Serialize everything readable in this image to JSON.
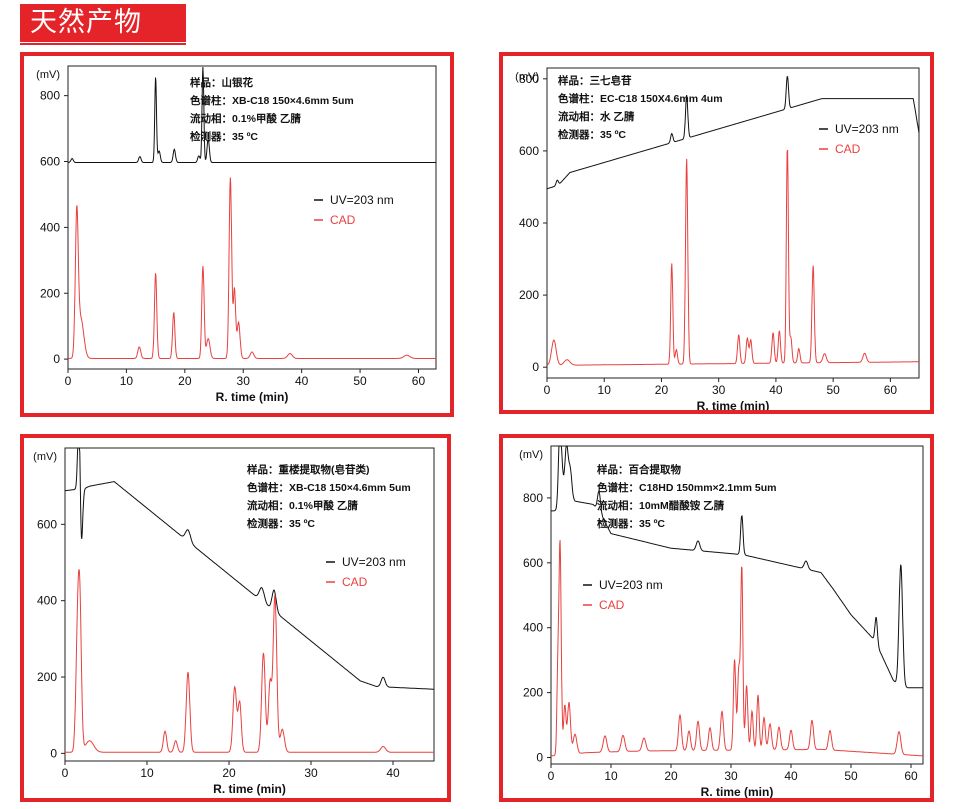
{
  "header": {
    "title": "天然产物"
  },
  "chart_data": [
    {
      "type": "line",
      "xlabel": "R. time (min)",
      "ylabel": "(mV)",
      "xlim": [
        0,
        63
      ],
      "ylim": [
        -30,
        890
      ],
      "xticks": [
        0,
        10,
        20,
        30,
        40,
        50,
        60
      ],
      "yticks": [
        0,
        200,
        400,
        600,
        800
      ],
      "info": [
        "样品：山银花",
        "色谱柱：XB-C18  150×4.6mm  5um",
        "流动相：0.1%甲酸  乙腈",
        "检测器：35 ºC"
      ],
      "series": [
        {
          "name": "UV=203 nm",
          "color": "#111111",
          "baseline": [
            [
              0,
              597
            ],
            [
              63,
              597
            ]
          ],
          "peaks": [
            [
              0.7,
              12,
              0.2
            ],
            [
              12.3,
              18,
              0.2
            ],
            [
              15.0,
              260,
              0.15
            ],
            [
              15.6,
              35,
              0.2
            ],
            [
              18.2,
              40,
              0.2
            ],
            [
              22.4,
              20,
              0.2
            ],
            [
              23.1,
              290,
              0.15
            ],
            [
              24.0,
              70,
              0.2
            ]
          ]
        },
        {
          "name": "CAD",
          "color": "#e8413f",
          "baseline": [
            [
              0,
              2
            ],
            [
              63,
              2
            ]
          ],
          "peaks": [
            [
              1.5,
              420,
              0.25
            ],
            [
              2.2,
              120,
              0.5
            ],
            [
              12.2,
              35,
              0.25
            ],
            [
              15.0,
              260,
              0.2
            ],
            [
              18.1,
              140,
              0.2
            ],
            [
              23.1,
              280,
              0.2
            ],
            [
              24.0,
              60,
              0.3
            ],
            [
              27.8,
              550,
              0.22
            ],
            [
              28.5,
              210,
              0.2
            ],
            [
              29.2,
              110,
              0.25
            ],
            [
              31.5,
              20,
              0.3
            ],
            [
              38.0,
              15,
              0.4
            ],
            [
              58.0,
              10,
              0.5
            ]
          ]
        }
      ]
    },
    {
      "type": "line",
      "xlabel": "R. time (min)",
      "ylabel": "(mV)",
      "xlim": [
        0,
        65
      ],
      "ylim": [
        -30,
        830
      ],
      "xticks": [
        0,
        10,
        20,
        30,
        40,
        50,
        60
      ],
      "yticks": [
        0,
        200,
        400,
        600,
        800
      ],
      "info": [
        "样品：三七皂苷",
        "色谱柱：EC-C18  150X4.6mm  4um",
        "流动相：水   乙腈",
        "检测器：35 ºC"
      ],
      "series": [
        {
          "name": "UV=203 nm",
          "color": "#111111",
          "baseline": [
            [
              0,
              495
            ],
            [
              2,
              505
            ],
            [
              4,
              540
            ],
            [
              48,
              745
            ],
            [
              64,
              745
            ],
            [
              65,
              650
            ]
          ],
          "peaks": [
            [
              1.8,
              15,
              0.2
            ],
            [
              21.8,
              25,
              0.2
            ],
            [
              24.4,
              120,
              0.2
            ],
            [
              42.0,
              90,
              0.2
            ]
          ]
        },
        {
          "name": "CAD",
          "color": "#e8413f",
          "baseline": [
            [
              0,
              5
            ],
            [
              65,
              15
            ]
          ],
          "peaks": [
            [
              1.2,
              70,
              0.4
            ],
            [
              3.5,
              15,
              0.5
            ],
            [
              21.8,
              280,
              0.18
            ],
            [
              22.6,
              40,
              0.2
            ],
            [
              24.4,
              570,
              0.2
            ],
            [
              33.5,
              80,
              0.2
            ],
            [
              35.0,
              70,
              0.2
            ],
            [
              35.6,
              65,
              0.2
            ],
            [
              39.5,
              85,
              0.2
            ],
            [
              40.6,
              90,
              0.2
            ],
            [
              42.0,
              600,
              0.18
            ],
            [
              42.6,
              70,
              0.2
            ],
            [
              44.0,
              40,
              0.2
            ],
            [
              46.5,
              270,
              0.2
            ],
            [
              48.5,
              25,
              0.3
            ],
            [
              55.5,
              25,
              0.3
            ]
          ]
        }
      ]
    },
    {
      "type": "line",
      "xlabel": "R. time (min)",
      "ylabel": "(mV)",
      "xlim": [
        0,
        45
      ],
      "ylim": [
        -20,
        800
      ],
      "xticks": [
        0,
        10,
        20,
        30,
        40
      ],
      "yticks": [
        0,
        200,
        400,
        600
      ],
      "info": [
        "样品：重楼提取物(皂苷类)",
        "色谱柱：XB-C18  150×4.6mm  5um",
        "流动相：0.1%甲酸  乙腈",
        "检测器：35 ºC"
      ],
      "series": [
        {
          "name": "UV=203 nm",
          "color": "#111111",
          "baseline": [
            [
              0,
              688
            ],
            [
              1.5,
              692
            ],
            [
              2,
              690
            ],
            [
              3,
              700
            ],
            [
              6,
              712
            ],
            [
              36,
              190
            ],
            [
              38,
              175
            ],
            [
              45,
              168
            ]
          ],
          "peaks": [
            [
              1.7,
              200,
              0.15
            ],
            [
              2.0,
              -150,
              0.15
            ],
            [
              15.0,
              30,
              0.3
            ],
            [
              24.0,
              35,
              0.3
            ],
            [
              25.5,
              55,
              0.25
            ],
            [
              38.8,
              25,
              0.25
            ]
          ]
        },
        {
          "name": "CAD",
          "color": "#e8413f",
          "baseline": [
            [
              0,
              3
            ],
            [
              45,
              3
            ]
          ],
          "peaks": [
            [
              1.5,
              250,
              0.2
            ],
            [
              1.8,
              370,
              0.2
            ],
            [
              3.0,
              30,
              0.5
            ],
            [
              12.2,
              55,
              0.2
            ],
            [
              13.5,
              30,
              0.2
            ],
            [
              15.0,
              210,
              0.22
            ],
            [
              20.7,
              170,
              0.22
            ],
            [
              21.3,
              130,
              0.2
            ],
            [
              24.2,
              260,
              0.22
            ],
            [
              25.0,
              180,
              0.2
            ],
            [
              25.6,
              410,
              0.22
            ],
            [
              26.5,
              60,
              0.25
            ],
            [
              38.8,
              15,
              0.3
            ]
          ]
        }
      ]
    },
    {
      "type": "line",
      "xlabel": "R. time (min)",
      "ylabel": "(mV)",
      "xlim": [
        0,
        62
      ],
      "ylim": [
        -20,
        960
      ],
      "xticks": [
        0,
        10,
        20,
        30,
        40,
        50,
        60
      ],
      "yticks": [
        0,
        200,
        400,
        600,
        800
      ],
      "info": [
        "样品：百合提取物",
        "色谱柱：C18HD  150mm×2.1mm  5um",
        "流动相：10mM醋酸铵  乙腈",
        "检测器：35 ºC"
      ],
      "series": [
        {
          "name": "UV=203 nm",
          "color": "#111111",
          "baseline": [
            [
              0,
              760
            ],
            [
              1.2,
              760
            ],
            [
              2,
              840
            ],
            [
              4,
              790
            ],
            [
              7,
              780
            ],
            [
              8,
              760
            ],
            [
              10,
              690
            ],
            [
              20,
              645
            ],
            [
              32,
              625
            ],
            [
              45,
              570
            ],
            [
              47,
              520
            ],
            [
              50,
              440
            ],
            [
              54,
              360
            ],
            [
              55,
              320
            ],
            [
              57,
              240
            ],
            [
              58,
              215
            ],
            [
              62,
              215
            ]
          ],
          "peaks": [
            [
              1.5,
              250,
              0.25
            ],
            [
              2.6,
              140,
              0.25
            ],
            [
              3.2,
              80,
              0.25
            ],
            [
              8.0,
              60,
              0.25
            ],
            [
              24.5,
              30,
              0.3
            ],
            [
              31.8,
              120,
              0.2
            ],
            [
              42.5,
              25,
              0.3
            ],
            [
              54.2,
              80,
              0.2
            ],
            [
              58.3,
              380,
              0.3
            ]
          ]
        },
        {
          "name": "CAD",
          "color": "#e8413f",
          "baseline": [
            [
              0,
              5
            ],
            [
              6,
              15
            ],
            [
              15,
              20
            ],
            [
              45,
              25
            ],
            [
              62,
              5
            ]
          ],
          "peaks": [
            [
              1.1,
              200,
              0.15
            ],
            [
              1.5,
              660,
              0.2
            ],
            [
              2.3,
              150,
              0.2
            ],
            [
              3.0,
              160,
              0.25
            ],
            [
              4.0,
              60,
              0.3
            ],
            [
              9.0,
              50,
              0.3
            ],
            [
              12.0,
              50,
              0.3
            ],
            [
              15.5,
              40,
              0.3
            ],
            [
              21.5,
              110,
              0.25
            ],
            [
              23.0,
              60,
              0.25
            ],
            [
              24.5,
              90,
              0.25
            ],
            [
              26.5,
              70,
              0.25
            ],
            [
              28.5,
              120,
              0.25
            ],
            [
              30.6,
              280,
              0.2
            ],
            [
              31.3,
              250,
              0.2
            ],
            [
              31.8,
              560,
              0.18
            ],
            [
              32.6,
              200,
              0.2
            ],
            [
              33.5,
              120,
              0.2
            ],
            [
              34.5,
              170,
              0.2
            ],
            [
              35.5,
              100,
              0.22
            ],
            [
              36.5,
              80,
              0.25
            ],
            [
              38.0,
              70,
              0.25
            ],
            [
              40.0,
              60,
              0.25
            ],
            [
              43.5,
              90,
              0.25
            ],
            [
              46.5,
              60,
              0.25
            ],
            [
              58.0,
              70,
              0.3
            ]
          ]
        }
      ]
    }
  ]
}
